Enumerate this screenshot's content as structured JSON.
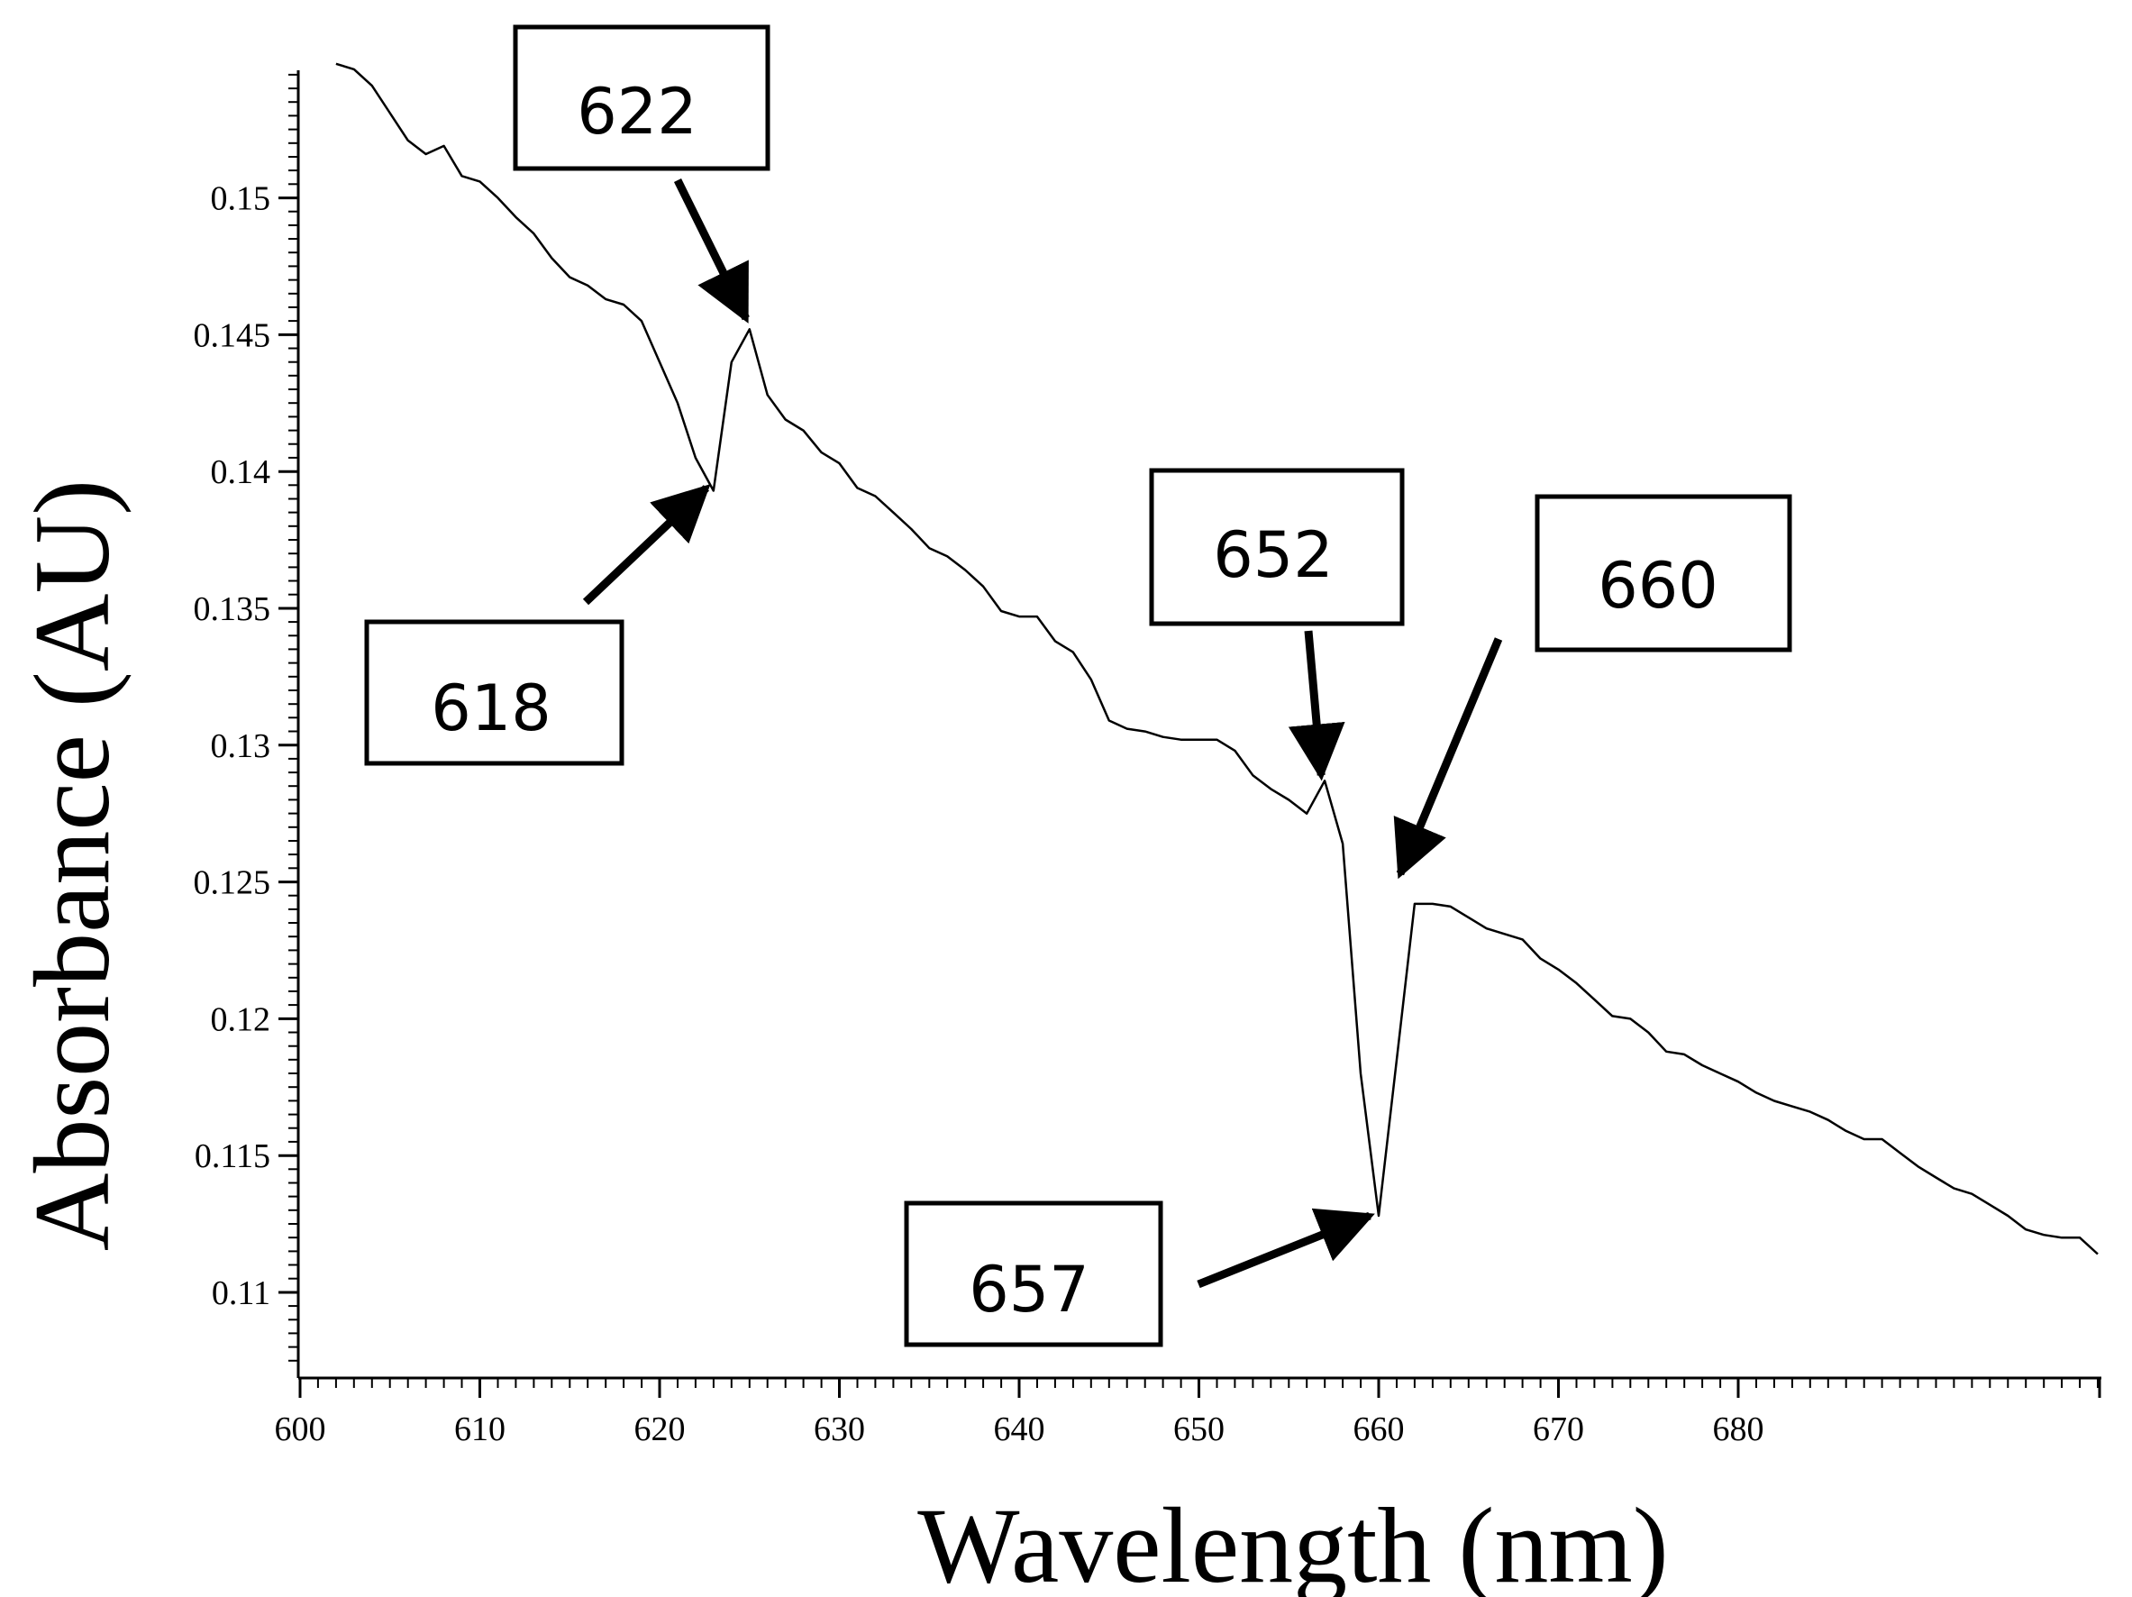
{
  "chart_data": {
    "type": "line",
    "title": "",
    "xlabel": "Wavelength (nm)",
    "ylabel": "Absorbance (AU)",
    "xlim": [
      600,
      700
    ],
    "ylim": [
      0.1068,
      0.1549
    ],
    "xticks": [
      600,
      610,
      620,
      630,
      640,
      650,
      660,
      670,
      680
    ],
    "xtick_labels": [
      "600",
      "610",
      "620",
      "630",
      "640",
      "650",
      "660",
      "670",
      "680"
    ],
    "yticks": [
      0.11,
      0.115,
      0.12,
      0.125,
      0.13,
      0.135,
      0.14,
      0.145,
      0.15
    ],
    "ytick_labels": [
      "0.11",
      "0.115",
      "0.12",
      "0.125",
      "0.13",
      "0.135",
      "0.14",
      "0.145",
      "0.15"
    ],
    "grid": false,
    "series": [
      {
        "name": "Absorbance",
        "color": "#000000",
        "x": [
          602,
          603,
          604,
          605,
          606,
          607,
          608,
          609,
          610,
          611,
          612,
          613,
          614,
          615,
          616,
          617,
          618,
          619,
          620,
          621,
          622,
          623,
          624,
          625,
          626,
          627,
          628,
          629,
          630,
          631,
          632,
          633,
          634,
          635,
          636,
          637,
          638,
          639,
          640,
          641,
          642,
          643,
          644,
          645,
          646,
          647,
          648,
          649,
          650,
          651,
          652,
          653,
          654,
          655,
          656,
          657,
          658,
          659,
          660,
          661,
          662,
          663,
          664,
          665,
          666,
          667,
          668,
          669,
          670,
          671,
          672,
          673,
          674,
          675,
          676,
          677,
          678,
          679,
          680,
          681,
          682,
          683,
          684,
          685,
          686,
          687,
          688,
          689,
          690,
          691,
          692,
          693,
          694,
          695,
          696,
          697,
          698,
          699,
          700
        ],
        "y": [
          0.1549,
          0.1547,
          0.1541,
          0.1531,
          0.1521,
          0.1516,
          0.1519,
          0.1508,
          0.1506,
          0.15,
          0.1493,
          0.1487,
          0.1478,
          0.1471,
          0.1468,
          0.1463,
          0.1461,
          0.1455,
          0.144,
          0.1425,
          0.1405,
          0.1393,
          0.144,
          0.1452,
          0.1428,
          0.1419,
          0.1415,
          0.1407,
          0.1403,
          0.1394,
          0.1391,
          0.1385,
          0.1379,
          0.1372,
          0.1369,
          0.1364,
          0.1358,
          0.1349,
          0.1347,
          0.1347,
          0.1338,
          0.1334,
          0.1324,
          0.1309,
          0.1306,
          0.1305,
          0.1303,
          0.1302,
          0.1302,
          0.1302,
          0.1298,
          0.1289,
          0.1284,
          0.128,
          0.1275,
          0.1287,
          0.1264,
          0.118,
          0.1128,
          0.1185,
          0.1242,
          0.1242,
          0.1241,
          0.1237,
          0.1233,
          0.1231,
          0.1229,
          0.1222,
          0.1218,
          0.1213,
          0.1207,
          0.1201,
          0.12,
          0.1195,
          0.1188,
          0.1187,
          0.1183,
          0.118,
          0.1177,
          0.1173,
          0.117,
          0.1168,
          0.1166,
          0.1163,
          0.1159,
          0.1156,
          0.1156,
          0.1151,
          0.1146,
          0.1142,
          0.1138,
          0.1136,
          0.1132,
          0.1128,
          0.1123,
          0.1121,
          0.112,
          0.112,
          0.1114
        ]
      }
    ],
    "annotations": [
      {
        "label": "622",
        "x": 624.8,
        "y": 0.1456
      },
      {
        "label": "618",
        "x": 622.6,
        "y": 0.1394
      },
      {
        "label": "652",
        "x": 656.8,
        "y": 0.1289
      },
      {
        "label": "660",
        "x": 661.2,
        "y": 0.1253
      },
      {
        "label": "657",
        "x": 659.5,
        "y": 0.1128
      }
    ]
  }
}
